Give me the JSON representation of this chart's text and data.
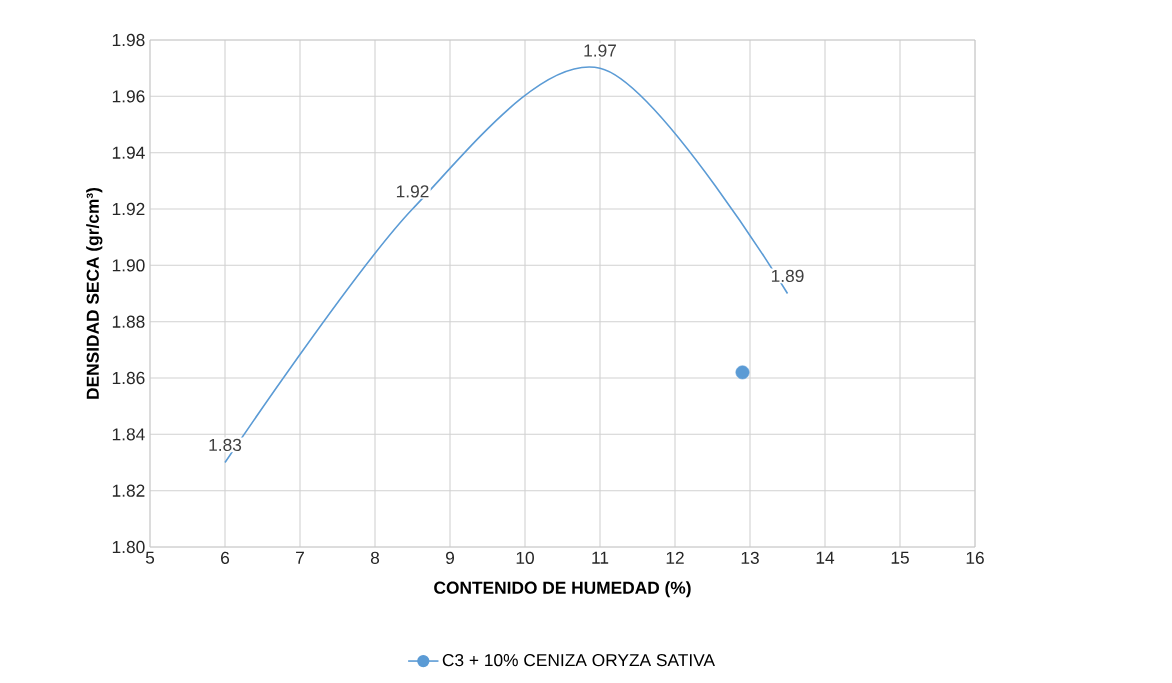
{
  "chart_data": {
    "type": "line",
    "xlabel": "CONTENIDO DE HUMEDAD (%)",
    "ylabel": "DENSIDAD SECA (gr/cm³)",
    "series": [
      {
        "name": "C3 + 10% CENIZA ORYZA SATIVA",
        "color": "#5b9bd5",
        "x": [
          6,
          8.5,
          11,
          13.5
        ],
        "values": [
          1.83,
          1.92,
          1.97,
          1.89
        ],
        "value_labels": [
          "1.83",
          "1.92",
          "1.97",
          "1.89"
        ],
        "marker": "none"
      },
      {
        "type": "scatter",
        "color": "#5b9bd5",
        "x": [
          12.9
        ],
        "values": [
          1.862
        ],
        "marker": "circle"
      }
    ],
    "xlim": [
      5,
      16
    ],
    "xticks": [
      5,
      6,
      7,
      8,
      9,
      10,
      11,
      12,
      13,
      14,
      15,
      16
    ],
    "ylim": [
      1.8,
      1.98
    ],
    "yticks": [
      {
        "value": 1.8,
        "label": "1.80"
      },
      {
        "value": 1.82,
        "label": "1.82"
      },
      {
        "value": 1.84,
        "label": "1.84"
      },
      {
        "value": 1.86,
        "label": "1.86"
      },
      {
        "value": 1.88,
        "label": "1.88"
      },
      {
        "value": 1.9,
        "label": "1.90"
      },
      {
        "value": 1.92,
        "label": "1.92"
      },
      {
        "value": 1.94,
        "label": "1.94"
      },
      {
        "value": 1.96,
        "label": "1.96"
      },
      {
        "value": 1.98,
        "label": "1.98"
      }
    ],
    "grid": true,
    "legend": "bottom"
  }
}
